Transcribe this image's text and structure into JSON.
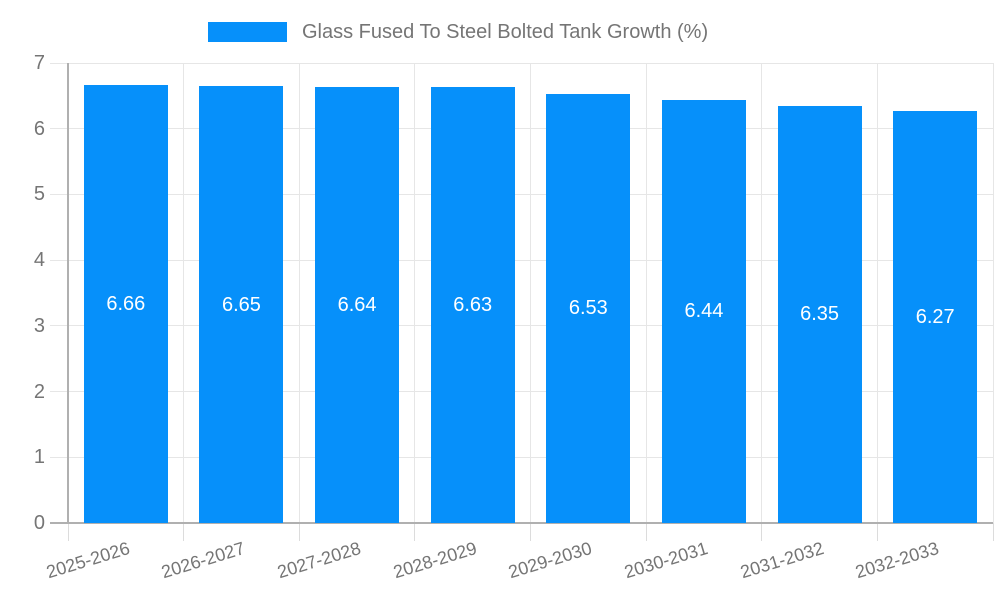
{
  "chart_data": {
    "type": "bar",
    "title": "Glass Fused To Steel Bolted Tank Growth (%)",
    "series_name": "Glass Fused To Steel Bolted Tank Growth (%)",
    "categories": [
      "2025-2026",
      "2026-2027",
      "2027-2028",
      "2028-2029",
      "2029-2030",
      "2030-2031",
      "2031-2032",
      "2032-2033"
    ],
    "values": [
      6.66,
      6.65,
      6.64,
      6.63,
      6.53,
      6.44,
      6.35,
      6.27
    ],
    "value_labels": [
      "6.66",
      "6.65",
      "6.64",
      "6.63",
      "6.53",
      "6.44",
      "6.35",
      "6.27"
    ],
    "xlabel": "",
    "ylabel": "",
    "ylim": [
      0,
      7
    ],
    "yticks": [
      0,
      1,
      2,
      3,
      4,
      5,
      6,
      7
    ],
    "grid": true,
    "legend_position": "top-center",
    "colors": {
      "bar": "#0690FA",
      "value_label_text": "#ffffff",
      "axis_text": "#757575",
      "gridline": "#e6e6e6",
      "tick": "#dcdcdc",
      "axis_line": "#b0b0b0"
    }
  }
}
